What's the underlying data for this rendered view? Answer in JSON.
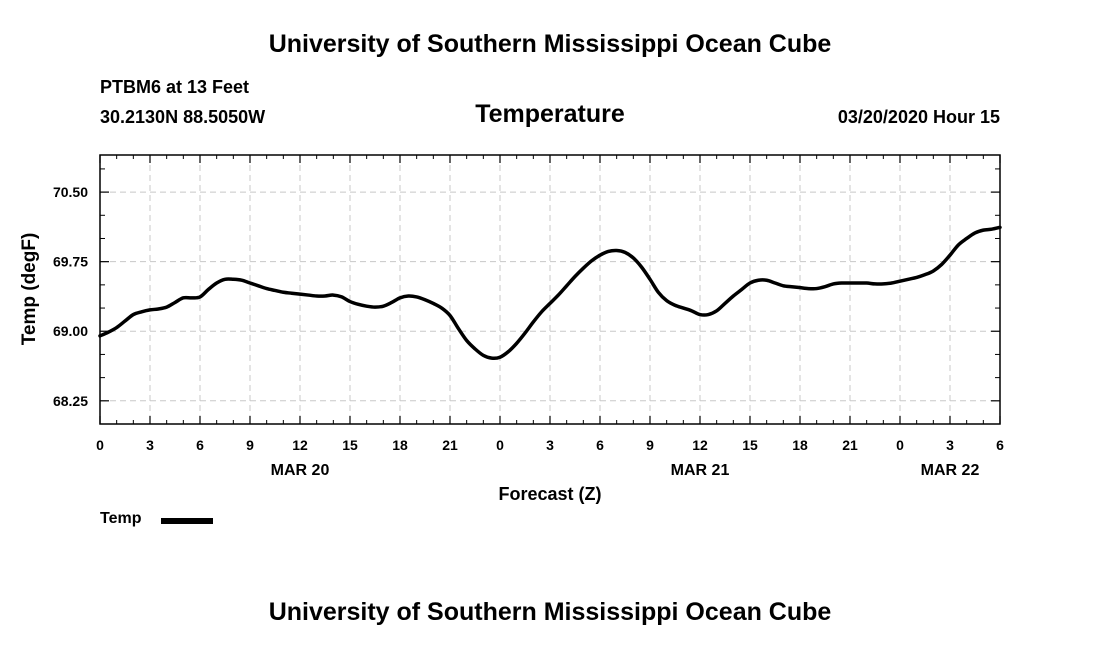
{
  "header": {
    "title": "University of Southern Mississippi Ocean Cube",
    "station": "PTBM6 at 13 Feet",
    "coordinates": "30.2130N 88.5050W",
    "datetime": "03/20/2020 Hour 15"
  },
  "footer": {
    "title": "University of Southern Mississippi Ocean Cube"
  },
  "legend": {
    "label": "Temp",
    "color": "#000000"
  },
  "chart_data": {
    "type": "line",
    "title": "Temperature",
    "xlabel": "Forecast (Z)",
    "ylabel": "Temp (degF)",
    "xlim": [
      0,
      54
    ],
    "ylim": [
      68.0,
      70.9
    ],
    "grid": true,
    "x_tick_values": [
      0,
      3,
      6,
      9,
      12,
      15,
      18,
      21,
      24,
      27,
      30,
      33,
      36,
      39,
      42,
      45,
      48,
      51,
      54
    ],
    "x_tick_labels": [
      "0",
      "3",
      "6",
      "9",
      "12",
      "15",
      "18",
      "21",
      "0",
      "3",
      "6",
      "9",
      "12",
      "15",
      "18",
      "21",
      "0",
      "3",
      "6"
    ],
    "y_ticks": [
      68.25,
      69.0,
      69.75,
      70.5
    ],
    "y_tick_labels": [
      "68.25",
      "69.00",
      "69.75",
      "70.50"
    ],
    "date_labels": [
      {
        "label": "MAR 20",
        "x": 12
      },
      {
        "label": "MAR 21",
        "x": 36
      },
      {
        "label": "MAR 22",
        "x": 51
      }
    ],
    "series": [
      {
        "name": "Temp",
        "color": "#000000",
        "x": [
          0,
          0.5,
          1,
          1.5,
          2,
          2.5,
          3,
          3.5,
          4,
          4.5,
          5,
          5.5,
          6,
          6.5,
          7,
          7.5,
          8,
          8.5,
          9,
          9.5,
          10,
          10.5,
          11,
          11.5,
          12,
          12.5,
          13,
          13.5,
          14,
          14.5,
          15,
          15.5,
          16,
          16.5,
          17,
          17.5,
          18,
          18.5,
          19,
          19.5,
          20,
          20.5,
          21,
          21.5,
          22,
          22.5,
          23,
          23.5,
          24,
          24.5,
          25,
          25.5,
          26,
          26.5,
          27,
          27.5,
          28,
          28.5,
          29,
          29.5,
          30,
          30.5,
          31,
          31.5,
          32,
          32.5,
          33,
          33.5,
          34,
          34.5,
          35,
          35.5,
          36,
          36.5,
          37,
          37.5,
          38,
          38.5,
          39,
          39.5,
          40,
          40.5,
          41,
          41.5,
          42,
          42.5,
          43,
          43.5,
          44,
          44.5,
          45,
          45.5,
          46,
          46.5,
          47,
          47.5,
          48,
          48.5,
          49,
          49.5,
          50,
          50.5,
          51,
          51.5,
          52,
          52.5,
          53,
          53.5,
          54
        ],
        "values": [
          68.95,
          68.99,
          69.04,
          69.11,
          69.18,
          69.21,
          69.23,
          69.24,
          69.26,
          69.31,
          69.36,
          69.36,
          69.37,
          69.45,
          69.52,
          69.56,
          69.56,
          69.55,
          69.52,
          69.49,
          69.46,
          69.44,
          69.42,
          69.41,
          69.4,
          69.39,
          69.38,
          69.38,
          69.39,
          69.37,
          69.32,
          69.29,
          69.27,
          69.26,
          69.27,
          69.31,
          69.36,
          69.38,
          69.37,
          69.34,
          69.3,
          69.25,
          69.17,
          69.03,
          68.9,
          68.81,
          68.74,
          68.71,
          68.72,
          68.78,
          68.87,
          68.98,
          69.1,
          69.21,
          69.3,
          69.39,
          69.49,
          69.59,
          69.68,
          69.76,
          69.82,
          69.86,
          69.87,
          69.85,
          69.79,
          69.69,
          69.56,
          69.42,
          69.33,
          69.28,
          69.25,
          69.22,
          69.18,
          69.18,
          69.22,
          69.3,
          69.38,
          69.45,
          69.52,
          69.55,
          69.55,
          69.52,
          69.49,
          69.48,
          69.47,
          69.46,
          69.46,
          69.48,
          69.51,
          69.52,
          69.52,
          69.52,
          69.52,
          69.51,
          69.51,
          69.52,
          69.54,
          69.56,
          69.58,
          69.61,
          69.65,
          69.72,
          69.82,
          69.93,
          70.0,
          70.06,
          70.09,
          70.1,
          70.12
        ]
      }
    ]
  }
}
